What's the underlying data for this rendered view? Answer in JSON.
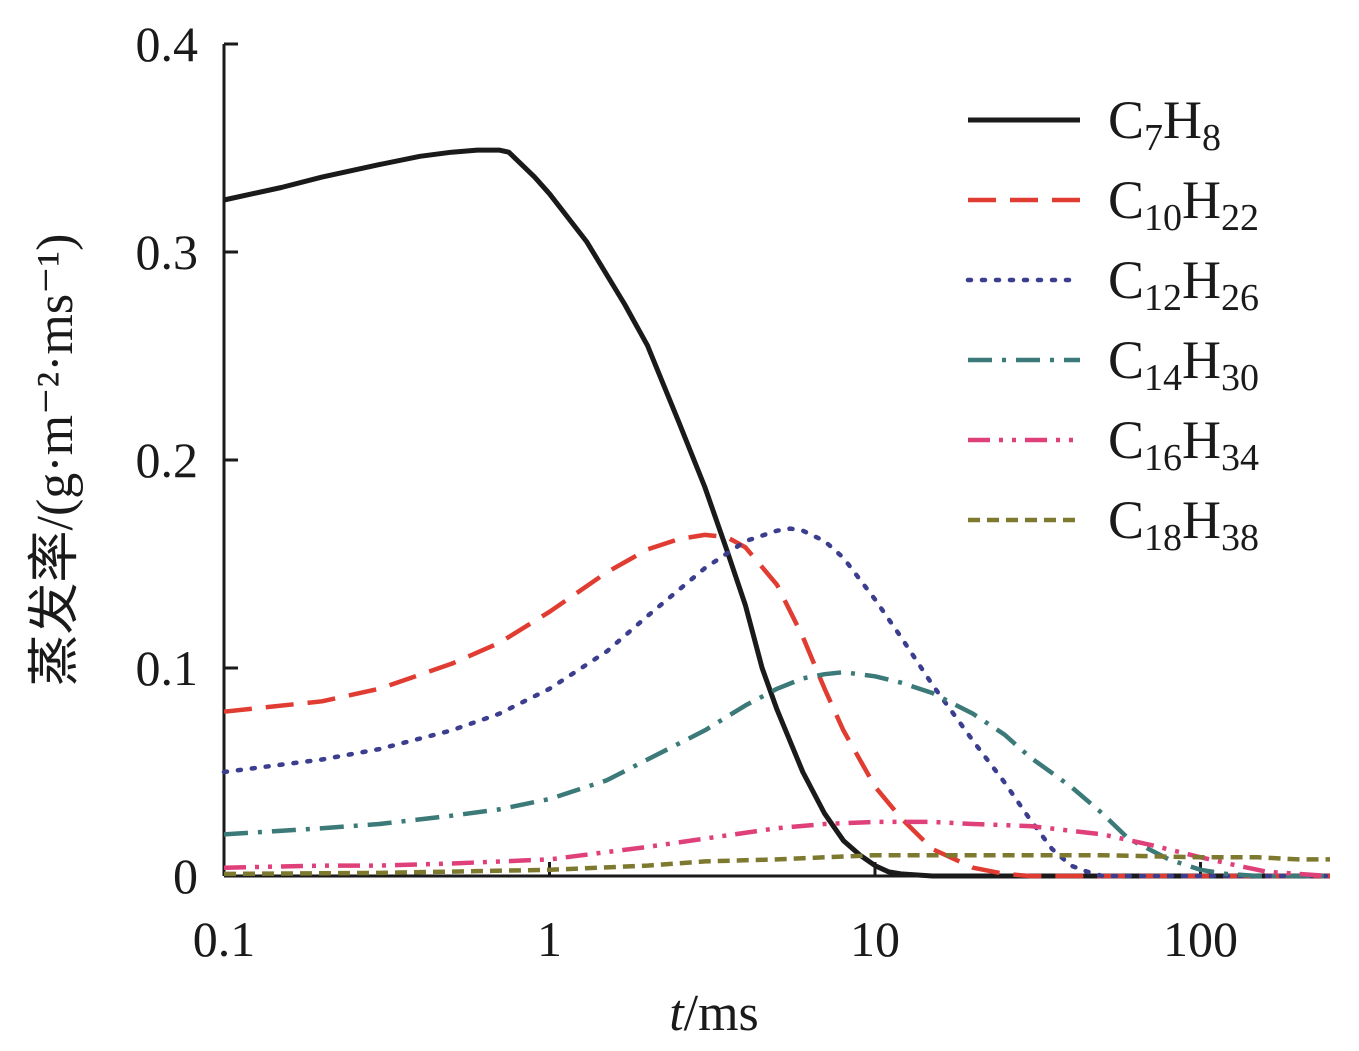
{
  "chart_data": {
    "type": "line",
    "title": "",
    "xlabel_italic": "t",
    "xlabel_rest": "/ms",
    "ylabel": "蒸发率/(g·m⁻²·ms⁻¹)",
    "xscale": "log",
    "xlim": [
      0.1,
      250
    ],
    "ylim": [
      0,
      0.4
    ],
    "xticks": [
      0.1,
      1,
      10,
      100
    ],
    "xtick_labels": [
      "0.1",
      "1",
      "10",
      "100"
    ],
    "yticks": [
      0,
      0.1,
      0.2,
      0.3,
      0.4
    ],
    "ytick_labels": [
      "0",
      "0.1",
      "0.2",
      "0.3",
      "0.4"
    ],
    "legend_position": "top-right",
    "series": [
      {
        "name": "C7H8",
        "label_main": "C",
        "sub1": "7",
        "label_h": "H",
        "sub2": "8",
        "color": "#1a1a1a",
        "style": "solid",
        "points": [
          [
            0.1,
            0.325
          ],
          [
            0.15,
            0.331
          ],
          [
            0.2,
            0.336
          ],
          [
            0.3,
            0.342
          ],
          [
            0.4,
            0.346
          ],
          [
            0.5,
            0.348
          ],
          [
            0.6,
            0.349
          ],
          [
            0.7,
            0.349
          ],
          [
            0.75,
            0.348
          ],
          [
            0.9,
            0.336
          ],
          [
            1.0,
            0.328
          ],
          [
            1.3,
            0.305
          ],
          [
            1.7,
            0.275
          ],
          [
            2.0,
            0.255
          ],
          [
            2.5,
            0.218
          ],
          [
            3.0,
            0.187
          ],
          [
            3.5,
            0.157
          ],
          [
            4.0,
            0.13
          ],
          [
            4.5,
            0.1
          ],
          [
            5.0,
            0.08
          ],
          [
            6.0,
            0.05
          ],
          [
            7.0,
            0.03
          ],
          [
            8.0,
            0.017
          ],
          [
            9.0,
            0.01
          ],
          [
            10,
            0.005
          ],
          [
            11,
            0.002
          ],
          [
            12,
            0.001
          ],
          [
            15,
            0.0
          ],
          [
            30,
            0.0
          ],
          [
            100,
            0.0
          ],
          [
            250,
            0.0
          ]
        ]
      },
      {
        "name": "C10H22",
        "label_main": "C",
        "sub1": "10",
        "label_h": "H",
        "sub2": "22",
        "color": "#e03c31",
        "style": "dashed",
        "points": [
          [
            0.1,
            0.079
          ],
          [
            0.2,
            0.084
          ],
          [
            0.3,
            0.09
          ],
          [
            0.5,
            0.102
          ],
          [
            0.7,
            0.112
          ],
          [
            1.0,
            0.127
          ],
          [
            1.5,
            0.146
          ],
          [
            2.0,
            0.157
          ],
          [
            2.5,
            0.162
          ],
          [
            3.0,
            0.164
          ],
          [
            3.5,
            0.163
          ],
          [
            4.0,
            0.158
          ],
          [
            5.0,
            0.14
          ],
          [
            6.0,
            0.115
          ],
          [
            7.0,
            0.09
          ],
          [
            8.0,
            0.07
          ],
          [
            10,
            0.043
          ],
          [
            12,
            0.028
          ],
          [
            15,
            0.013
          ],
          [
            20,
            0.004
          ],
          [
            25,
            0.001
          ],
          [
            30,
            0.0
          ],
          [
            100,
            0.0
          ],
          [
            250,
            0.0
          ]
        ]
      },
      {
        "name": "C12H26",
        "label_main": "C",
        "sub1": "12",
        "label_h": "H",
        "sub2": "26",
        "color": "#3b3d8e",
        "style": "dotted",
        "points": [
          [
            0.1,
            0.05
          ],
          [
            0.2,
            0.056
          ],
          [
            0.3,
            0.061
          ],
          [
            0.5,
            0.07
          ],
          [
            0.7,
            0.078
          ],
          [
            1.0,
            0.09
          ],
          [
            1.5,
            0.108
          ],
          [
            2.0,
            0.125
          ],
          [
            3.0,
            0.148
          ],
          [
            4.0,
            0.161
          ],
          [
            5.0,
            0.166
          ],
          [
            5.5,
            0.167
          ],
          [
            6.0,
            0.166
          ],
          [
            7.0,
            0.161
          ],
          [
            8.0,
            0.153
          ],
          [
            10,
            0.133
          ],
          [
            12,
            0.115
          ],
          [
            15,
            0.092
          ],
          [
            20,
            0.065
          ],
          [
            25,
            0.045
          ],
          [
            30,
            0.027
          ],
          [
            35,
            0.013
          ],
          [
            40,
            0.005
          ],
          [
            45,
            0.002
          ],
          [
            50,
            0.0
          ],
          [
            100,
            0.0
          ],
          [
            250,
            0.0
          ]
        ]
      },
      {
        "name": "C14H30",
        "label_main": "C",
        "sub1": "14",
        "label_h": "H",
        "sub2": "30",
        "color": "#3b7a78",
        "style": "dashdot",
        "points": [
          [
            0.1,
            0.02
          ],
          [
            0.2,
            0.023
          ],
          [
            0.3,
            0.025
          ],
          [
            0.5,
            0.029
          ],
          [
            0.7,
            0.032
          ],
          [
            1.0,
            0.037
          ],
          [
            1.5,
            0.046
          ],
          [
            2.0,
            0.056
          ],
          [
            3.0,
            0.07
          ],
          [
            4.0,
            0.082
          ],
          [
            5.0,
            0.09
          ],
          [
            6.0,
            0.095
          ],
          [
            7.0,
            0.097
          ],
          [
            8.0,
            0.098
          ],
          [
            10,
            0.096
          ],
          [
            12,
            0.093
          ],
          [
            15,
            0.088
          ],
          [
            20,
            0.078
          ],
          [
            25,
            0.068
          ],
          [
            30,
            0.057
          ],
          [
            40,
            0.043
          ],
          [
            50,
            0.03
          ],
          [
            60,
            0.018
          ],
          [
            80,
            0.008
          ],
          [
            100,
            0.003
          ],
          [
            120,
            0.001
          ],
          [
            150,
            0.0
          ],
          [
            250,
            0.0
          ]
        ]
      },
      {
        "name": "C16H34",
        "label_main": "C",
        "sub1": "16",
        "label_h": "H",
        "sub2": "34",
        "color": "#e0407a",
        "style": "dashdotdot",
        "points": [
          [
            0.1,
            0.004
          ],
          [
            0.2,
            0.005
          ],
          [
            0.3,
            0.005
          ],
          [
            0.5,
            0.006
          ],
          [
            1.0,
            0.008
          ],
          [
            2.0,
            0.014
          ],
          [
            3.0,
            0.018
          ],
          [
            5.0,
            0.023
          ],
          [
            7.0,
            0.025
          ],
          [
            10,
            0.026
          ],
          [
            15,
            0.026
          ],
          [
            20,
            0.025
          ],
          [
            30,
            0.024
          ],
          [
            50,
            0.02
          ],
          [
            70,
            0.015
          ],
          [
            100,
            0.009
          ],
          [
            130,
            0.005
          ],
          [
            160,
            0.002
          ],
          [
            200,
            0.001
          ],
          [
            250,
            0.0
          ]
        ]
      },
      {
        "name": "C18H38",
        "label_main": "C",
        "sub1": "18",
        "label_h": "H",
        "sub2": "38",
        "color": "#7d7a30",
        "style": "shortdash",
        "points": [
          [
            0.1,
            0.001
          ],
          [
            0.3,
            0.0015
          ],
          [
            1.0,
            0.003
          ],
          [
            2.0,
            0.005
          ],
          [
            3.0,
            0.007
          ],
          [
            5.0,
            0.008
          ],
          [
            7.0,
            0.009
          ],
          [
            10,
            0.01
          ],
          [
            20,
            0.01
          ],
          [
            50,
            0.01
          ],
          [
            100,
            0.009
          ],
          [
            150,
            0.009
          ],
          [
            200,
            0.008
          ],
          [
            250,
            0.008
          ]
        ]
      }
    ]
  }
}
